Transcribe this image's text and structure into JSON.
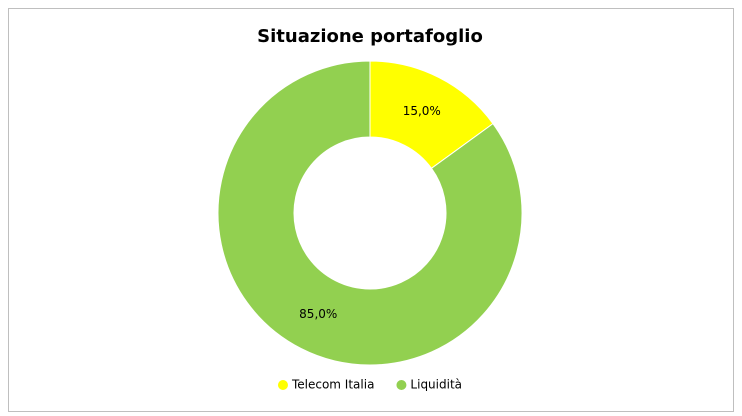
{
  "chart_data": {
    "type": "donut",
    "title": "Situazione portafoglio",
    "categories": [
      "Telecom Italia",
      "Liquidità"
    ],
    "values": [
      15,
      85
    ],
    "value_labels": [
      "15,0%",
      "85,0%"
    ],
    "colors": [
      "#ffff00",
      "#92d050"
    ],
    "legend": "bottom"
  }
}
